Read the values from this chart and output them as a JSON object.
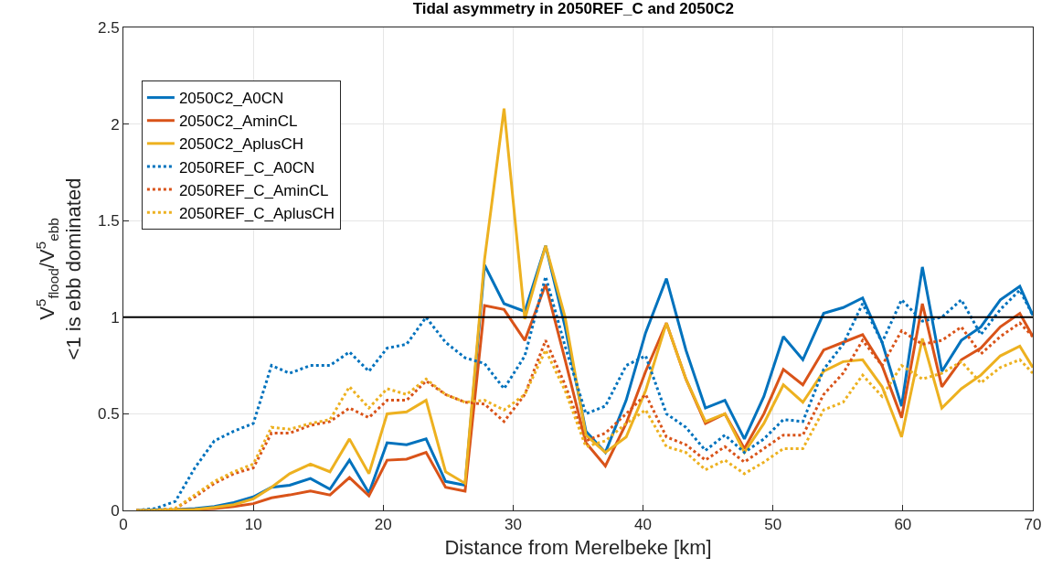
{
  "chart_data": {
    "type": "line",
    "title": "Tidal asymmetry in 2050REF_C and 2050C2",
    "xlabel": "Distance from Merelbeke [km]",
    "ylabel": "V$^{5}$$_{flood}$/V$^{5}$$_{ebb}$\n<1 is ebb dominated",
    "x": [
      1.0,
      2.5,
      4.0,
      5.5,
      7.0,
      8.5,
      10.0,
      11.4,
      12.8,
      14.4,
      15.9,
      17.4,
      18.9,
      20.3,
      21.8,
      23.3,
      24.8,
      26.3,
      27.8,
      29.3,
      30.9,
      32.5,
      34.0,
      35.6,
      37.1,
      38.7,
      40.2,
      41.8,
      43.3,
      44.8,
      46.3,
      47.8,
      49.3,
      50.8,
      52.3,
      53.9,
      55.4,
      56.9,
      58.4,
      59.9,
      61.5,
      63.0,
      64.5,
      66.0,
      67.5,
      69.0,
      70.0
    ],
    "series": [
      {
        "name": "2050C2_A0CN",
        "color": "#0072bd",
        "line_style": "solid",
        "values": [
          0,
          0.003,
          0.005,
          0.01,
          0.02,
          0.04,
          0.07,
          0.12,
          0.13,
          0.165,
          0.11,
          0.26,
          0.09,
          0.35,
          0.34,
          0.37,
          0.15,
          0.13,
          1.27,
          1.07,
          1.03,
          1.37,
          0.95,
          0.41,
          0.3,
          0.57,
          0.92,
          1.2,
          0.83,
          0.53,
          0.57,
          0.37,
          0.59,
          0.9,
          0.78,
          1.02,
          1.05,
          1.1,
          0.87,
          0.54,
          1.26,
          0.72,
          0.88,
          0.95,
          1.09,
          1.16,
          1.01
        ]
      },
      {
        "name": "2050C2_AminCL",
        "color": "#d95319",
        "line_style": "solid",
        "values": [
          null,
          null,
          0.003,
          0.005,
          0.01,
          0.02,
          0.035,
          0.065,
          0.08,
          0.1,
          0.08,
          0.17,
          0.075,
          0.26,
          0.265,
          0.3,
          0.12,
          0.1,
          1.06,
          1.04,
          0.88,
          1.17,
          0.78,
          0.35,
          0.23,
          0.45,
          0.72,
          0.97,
          0.68,
          0.45,
          0.5,
          0.32,
          0.5,
          0.73,
          0.65,
          0.83,
          0.87,
          0.91,
          0.75,
          0.48,
          1.07,
          0.64,
          0.78,
          0.84,
          0.95,
          1.02,
          0.9
        ]
      },
      {
        "name": "2050C2_AplusCH",
        "color": "#edb120",
        "line_style": "solid",
        "values": [
          0,
          0,
          0.003,
          0.005,
          0.015,
          0.03,
          0.06,
          0.12,
          0.19,
          0.24,
          0.2,
          0.37,
          0.19,
          0.5,
          0.51,
          0.57,
          0.2,
          0.14,
          1.3,
          2.08,
          0.99,
          1.37,
          1.0,
          0.39,
          0.3,
          0.38,
          0.62,
          0.97,
          0.68,
          0.46,
          0.5,
          0.3,
          0.45,
          0.65,
          0.56,
          0.72,
          0.77,
          0.78,
          0.64,
          0.38,
          0.89,
          0.53,
          0.63,
          0.7,
          0.8,
          0.85,
          0.74
        ]
      },
      {
        "name": "2050REF_C_A0CN",
        "color": "#0072bd",
        "line_style": "dotted",
        "values": [
          0,
          0.01,
          0.047,
          0.22,
          0.36,
          0.41,
          0.45,
          0.75,
          0.71,
          0.75,
          0.75,
          0.82,
          0.72,
          0.84,
          0.86,
          1.0,
          0.87,
          0.79,
          0.76,
          0.63,
          0.8,
          1.21,
          0.85,
          0.5,
          0.54,
          0.75,
          0.8,
          0.5,
          0.43,
          0.31,
          0.39,
          0.3,
          0.37,
          0.47,
          0.46,
          0.73,
          0.86,
          1.07,
          0.87,
          1.09,
          0.98,
          1.0,
          1.09,
          0.91,
          1.04,
          1.14,
          1.01
        ]
      },
      {
        "name": "2050REF_C_AminCL",
        "color": "#d95319",
        "line_style": "dotted",
        "values": [
          0,
          0.002,
          0.01,
          0.07,
          0.14,
          0.19,
          0.22,
          0.4,
          0.4,
          0.44,
          0.46,
          0.53,
          0.48,
          0.57,
          0.57,
          0.67,
          0.6,
          0.56,
          0.55,
          0.46,
          0.6,
          0.88,
          0.65,
          0.36,
          0.4,
          0.5,
          0.6,
          0.38,
          0.34,
          0.26,
          0.33,
          0.25,
          0.32,
          0.39,
          0.39,
          0.6,
          0.71,
          0.88,
          0.75,
          0.93,
          0.86,
          0.88,
          0.95,
          0.81,
          0.9,
          0.97,
          0.9
        ]
      },
      {
        "name": "2050REF_C_AplusCH",
        "color": "#edb120",
        "line_style": "dotted",
        "values": [
          0,
          0.002,
          0.01,
          0.08,
          0.15,
          0.2,
          0.24,
          0.43,
          0.42,
          0.45,
          0.47,
          0.64,
          0.53,
          0.63,
          0.6,
          0.68,
          0.6,
          0.56,
          0.57,
          0.52,
          0.6,
          0.83,
          0.62,
          0.33,
          0.36,
          0.45,
          0.52,
          0.33,
          0.3,
          0.21,
          0.26,
          0.19,
          0.25,
          0.32,
          0.32,
          0.52,
          0.56,
          0.7,
          0.59,
          0.75,
          0.68,
          0.71,
          0.77,
          0.66,
          0.74,
          0.78,
          0.71
        ]
      }
    ],
    "xlim": [
      0,
      70
    ],
    "xticks": [
      0,
      10,
      20,
      30,
      40,
      50,
      60,
      70
    ],
    "ylim": [
      0,
      2.5
    ],
    "yticks": [
      0,
      0.5,
      1,
      1.5,
      2,
      2.5
    ],
    "ref_lines": [
      {
        "axis": "y",
        "value": 1,
        "label": null,
        "color": "#000000",
        "line_style": "solid"
      }
    ],
    "grid": true,
    "legend": "top left",
    "marker": "none"
  }
}
